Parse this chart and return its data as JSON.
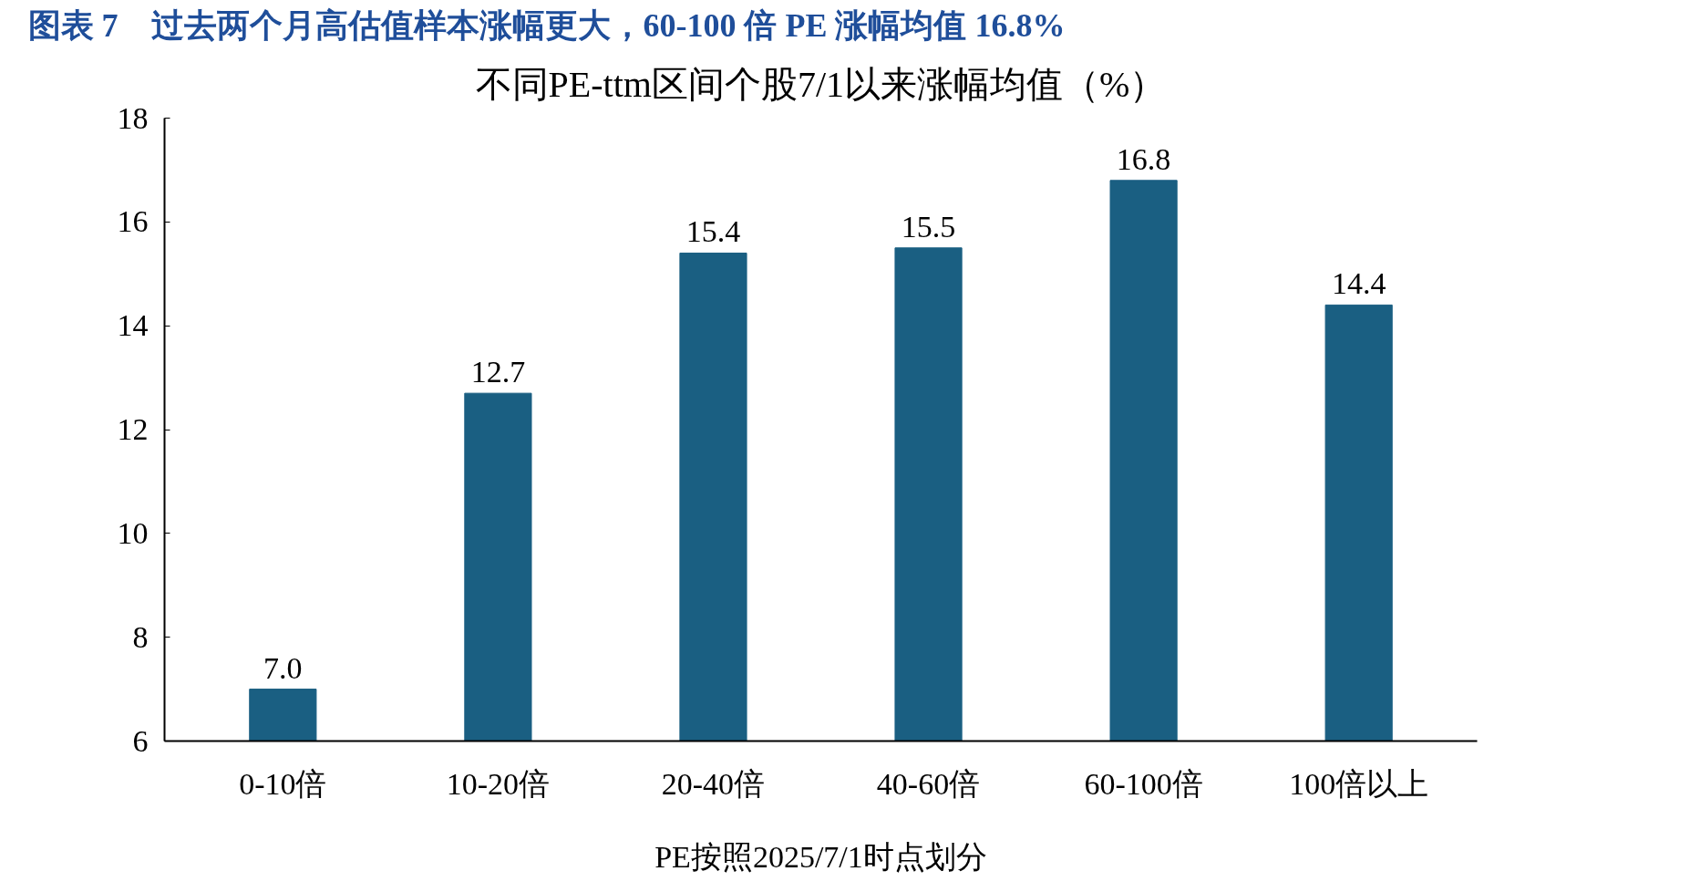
{
  "chart_data": {
    "type": "bar",
    "title": "图表 7　过去两个月高估值样本涨幅更大，60-100 倍 PE 涨幅均值 16.8%",
    "subtitle": "不同PE-ttm区间个股7/1以来涨幅均值（%）",
    "xlabel": "PE按照2025/7/1时点划分",
    "categories": [
      "0-10倍",
      "10-20倍",
      "20-40倍",
      "40-60倍",
      "60-100倍",
      "100倍以上"
    ],
    "values": [
      7.0,
      12.7,
      15.4,
      15.5,
      16.8,
      14.4
    ],
    "value_labels": [
      "7.0",
      "12.7",
      "15.4",
      "15.5",
      "16.8",
      "14.4"
    ],
    "color": "#1a5f82",
    "ylim": [
      6,
      18
    ],
    "yticks": [
      6,
      8,
      10,
      12,
      14,
      16,
      18
    ],
    "grid": false
  }
}
